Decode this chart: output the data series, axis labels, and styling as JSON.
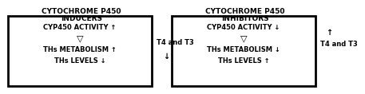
{
  "background_color": "#ffffff",
  "left_title_line1": "CYTOCHROME P450",
  "left_title_line2": "INDUCERS",
  "right_title_line1": "CYTOCHROME P450",
  "right_title_line2": "INHIBITORS",
  "left_box": {
    "line1": "CYP450 ACTIVITY ↑",
    "line2": "▽",
    "line3": "THs METABOLISM ↑",
    "line4": "THs LEVELS ↓"
  },
  "right_box": {
    "line1": "CYP450 ACTIVITY ↓",
    "line2": "▽",
    "line3": "THs METABOLISM ↓",
    "line4": "THs LEVELS ↑"
  },
  "left_side_label": "T4 and T3",
  "left_side_arrow_down": "↓",
  "right_side_label": "T4 and T3",
  "right_side_arrow_up": "↑",
  "box_color": "#000000",
  "text_color": "#000000",
  "title_fontsize": 6.5,
  "content_fontsize": 6.0,
  "triangle_fontsize": 8.0,
  "side_fontsize": 6.0
}
